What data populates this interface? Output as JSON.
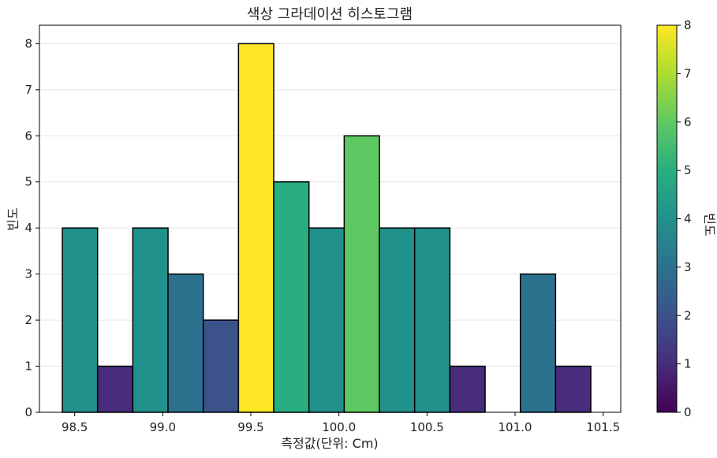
{
  "chart_data": {
    "type": "bar",
    "title": "색상 그라데이션 히스토그램",
    "xlabel": "측정값(단위: Cm)",
    "ylabel": "빈도",
    "colorbar_label": "빈도",
    "xlim": [
      98.3,
      101.6
    ],
    "ylim": [
      0,
      8.4
    ],
    "xticks": [
      98.5,
      99.0,
      99.5,
      100.0,
      100.5,
      101.0,
      101.5
    ],
    "xtick_labels": [
      "98.5",
      "99.0",
      "99.5",
      "100.0",
      "100.5",
      "101.0",
      "101.5"
    ],
    "yticks": [
      0,
      1,
      2,
      3,
      4,
      5,
      6,
      7,
      8
    ],
    "colorbar_ticks": [
      0,
      1,
      2,
      3,
      4,
      5,
      6,
      7,
      8
    ],
    "colorbar_range": [
      0,
      8
    ],
    "colormap": "viridis",
    "grid": "horizontal",
    "bin_edges": [
      98.43,
      98.63,
      98.83,
      99.03,
      99.23,
      99.43,
      99.63,
      99.83,
      100.03,
      100.23,
      100.43,
      100.63,
      100.83,
      101.03,
      101.23,
      101.43
    ],
    "values": [
      4,
      1,
      4,
      3,
      2,
      8,
      5,
      4,
      6,
      4,
      4,
      1,
      0,
      3,
      1
    ]
  }
}
